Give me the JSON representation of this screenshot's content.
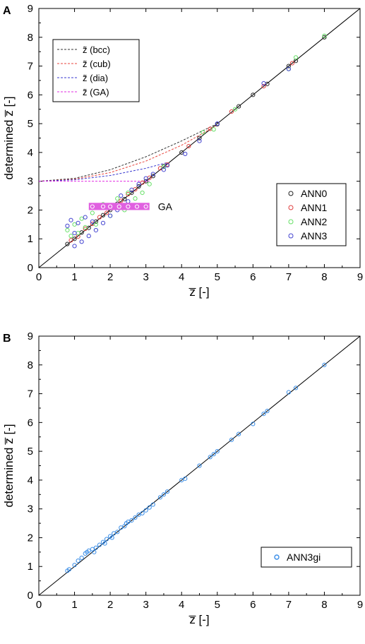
{
  "chart_data": [
    {
      "panel": "A",
      "type": "scatter",
      "xlabel": "z̅ [-]",
      "ylabel": "determined z̅ [-]",
      "xlim": [
        0,
        9
      ],
      "ylim": [
        0,
        9
      ],
      "xticks": [
        "0",
        "1",
        "2",
        "3",
        "4",
        "5",
        "6",
        "7",
        "8",
        "9"
      ],
      "yticks": [
        "0",
        "1",
        "2",
        "3",
        "4",
        "5",
        "6",
        "7",
        "8",
        "9"
      ],
      "reference_line": {
        "x": [
          0,
          9
        ],
        "y": [
          0,
          9
        ]
      },
      "curves": [
        {
          "name": "z̃ (bcc)",
          "color": "#333333",
          "x": [
            0,
            1,
            2,
            3,
            4,
            5
          ],
          "y": [
            3.0,
            3.1,
            3.4,
            3.85,
            4.4,
            5.0
          ]
        },
        {
          "name": "z̃ (cub)",
          "color": "#e8453c",
          "x": [
            0,
            1,
            2,
            3,
            4,
            5
          ],
          "y": [
            3.0,
            3.07,
            3.3,
            3.7,
            4.25,
            4.95
          ]
        },
        {
          "name": "z̃ (dia)",
          "color": "#3a3ad0",
          "x": [
            0,
            1,
            2,
            3,
            3.6
          ],
          "y": [
            3.0,
            3.05,
            3.2,
            3.45,
            3.65
          ]
        },
        {
          "name": "z̃ (GA)",
          "color": "#e22ce2",
          "x": [
            0,
            2,
            3.1
          ],
          "y": [
            3.0,
            3.0,
            3.0
          ]
        }
      ],
      "ga_band": {
        "label": "GA",
        "x": [
          1.4,
          3.1
        ],
        "y": [
          2.0,
          2.25
        ],
        "points_x": [
          1.5,
          1.8,
          2.0,
          2.25,
          2.5,
          2.75,
          3.0
        ],
        "points_y": [
          2.12,
          2.12,
          2.12,
          2.12,
          2.12,
          2.12,
          2.12
        ],
        "color": "#e060e0"
      },
      "series": [
        {
          "name": "ANN0",
          "color": "#222222",
          "x": [
            0.8,
            1.0,
            1.2,
            1.4,
            1.6,
            1.8,
            2.0,
            2.2,
            2.4,
            2.6,
            2.8,
            3.0,
            3.2,
            3.5,
            4.0,
            4.5,
            5.0,
            5.6,
            6.0,
            6.4,
            7.0,
            7.2,
            8.0
          ],
          "y": [
            0.82,
            1.0,
            1.22,
            1.38,
            1.6,
            1.82,
            2.0,
            2.22,
            2.38,
            2.6,
            2.82,
            3.0,
            3.18,
            3.52,
            4.0,
            4.5,
            4.98,
            5.6,
            6.0,
            6.38,
            7.0,
            7.18,
            8.0
          ]
        },
        {
          "name": "ANN1",
          "color": "#e04040",
          "x": [
            0.9,
            1.1,
            1.3,
            1.5,
            1.7,
            1.9,
            2.1,
            2.3,
            2.5,
            2.7,
            2.9,
            3.1,
            3.4,
            3.6,
            4.2,
            4.8,
            5.4,
            6.3,
            7.1
          ],
          "y": [
            0.95,
            1.08,
            1.35,
            1.52,
            1.75,
            1.9,
            2.15,
            2.32,
            2.55,
            2.72,
            2.95,
            3.12,
            3.45,
            3.58,
            4.22,
            4.82,
            5.42,
            6.3,
            7.1
          ]
        },
        {
          "name": "ANN2",
          "color": "#66e066",
          "x": [
            0.8,
            0.9,
            1.0,
            1.1,
            1.2,
            1.3,
            1.5,
            1.6,
            1.8,
            2.0,
            2.2,
            2.4,
            2.5,
            2.7,
            2.9,
            3.1,
            3.5,
            4.6,
            4.9,
            5.5,
            7.0,
            7.2,
            8.0
          ],
          "y": [
            1.3,
            1.1,
            1.5,
            1.2,
            1.7,
            1.4,
            1.9,
            1.5,
            2.2,
            1.8,
            2.4,
            2.0,
            2.6,
            2.4,
            2.6,
            2.9,
            3.5,
            4.7,
            4.8,
            5.5,
            6.9,
            7.3,
            8.05
          ]
        },
        {
          "name": "ANN3",
          "color": "#4444d0",
          "x": [
            0.8,
            0.9,
            1.0,
            1.0,
            1.1,
            1.2,
            1.3,
            1.4,
            1.5,
            1.6,
            1.8,
            2.0,
            2.2,
            2.3,
            2.5,
            2.6,
            2.8,
            3.0,
            3.2,
            3.5,
            3.6,
            4.1,
            4.5,
            5.0,
            6.3,
            7.0
          ],
          "y": [
            1.45,
            1.65,
            0.75,
            1.2,
            1.55,
            0.9,
            1.75,
            1.1,
            1.6,
            1.3,
            1.55,
            1.8,
            2.0,
            2.5,
            2.3,
            2.7,
            2.9,
            3.1,
            3.25,
            3.4,
            3.55,
            3.95,
            4.4,
            5.0,
            6.4,
            6.9
          ]
        }
      ],
      "legend_placement": "upper-left (curves), lower-right (series)"
    },
    {
      "panel": "B",
      "type": "scatter",
      "xlabel": "z̅ [-]",
      "ylabel": "determined z̅ [-]",
      "xlim": [
        0,
        9
      ],
      "ylim": [
        0,
        9
      ],
      "xticks": [
        "0",
        "1",
        "2",
        "3",
        "4",
        "5",
        "6",
        "7",
        "8",
        "9"
      ],
      "yticks": [
        "0",
        "1",
        "2",
        "3",
        "4",
        "5",
        "6",
        "7",
        "8",
        "9"
      ],
      "reference_line": {
        "x": [
          0,
          9
        ],
        "y": [
          0,
          9
        ]
      },
      "series": [
        {
          "name": "ANN3gi",
          "color": "#3a8ee8",
          "x": [
            0.8,
            0.85,
            1.0,
            1.1,
            1.2,
            1.3,
            1.35,
            1.4,
            1.5,
            1.55,
            1.6,
            1.7,
            1.8,
            1.85,
            1.9,
            2.0,
            2.05,
            2.1,
            2.2,
            2.3,
            2.4,
            2.45,
            2.5,
            2.6,
            2.7,
            2.8,
            2.9,
            3.0,
            3.1,
            3.2,
            3.4,
            3.5,
            3.6,
            4.0,
            4.1,
            4.5,
            4.8,
            4.9,
            5.0,
            5.4,
            5.6,
            6.0,
            6.3,
            6.4,
            7.0,
            7.2,
            8.0
          ],
          "y": [
            0.85,
            0.9,
            1.05,
            1.2,
            1.3,
            1.45,
            1.5,
            1.55,
            1.6,
            1.5,
            1.65,
            1.75,
            1.85,
            1.8,
            1.95,
            2.05,
            2.0,
            2.15,
            2.2,
            2.35,
            2.4,
            2.5,
            2.55,
            2.6,
            2.7,
            2.8,
            2.85,
            2.95,
            3.05,
            3.15,
            3.4,
            3.5,
            3.6,
            4.0,
            4.05,
            4.5,
            4.8,
            4.9,
            5.0,
            5.4,
            5.6,
            5.95,
            6.3,
            6.4,
            7.05,
            7.2,
            8.0
          ]
        }
      ],
      "legend_placement": "lower-right"
    }
  ]
}
